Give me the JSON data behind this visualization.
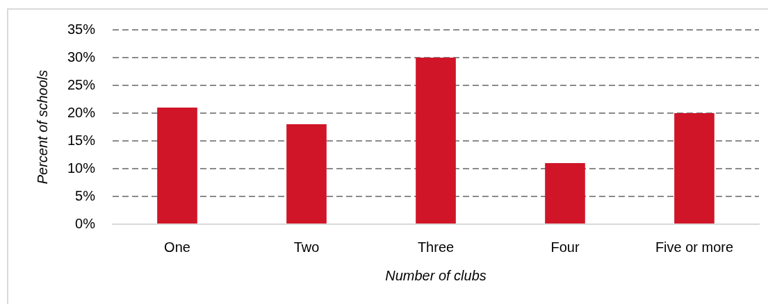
{
  "chart_data": {
    "type": "bar",
    "xlabel": "Number of clubs",
    "ylabel": "Percent of schools",
    "categories": [
      "One",
      "Two",
      "Three",
      "Four",
      "Five or more"
    ],
    "values": [
      21,
      18,
      30,
      11,
      20
    ],
    "color": "#d01529",
    "ylim": [
      0,
      35
    ],
    "yticks": [
      {
        "value": 0,
        "label": "0%"
      },
      {
        "value": 5,
        "label": "5%"
      },
      {
        "value": 10,
        "label": "10%"
      },
      {
        "value": 15,
        "label": "15%"
      },
      {
        "value": 20,
        "label": "20%"
      },
      {
        "value": 25,
        "label": "25%"
      },
      {
        "value": 30,
        "label": "30%"
      },
      {
        "value": 35,
        "label": "35%"
      }
    ],
    "grid": "y"
  }
}
